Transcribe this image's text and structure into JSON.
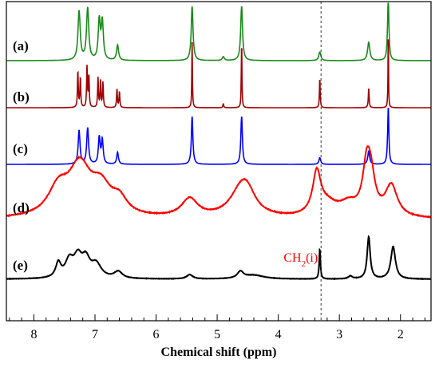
{
  "chart_data": {
    "type": "line",
    "xlabel": "Chemical shift (ppm)",
    "ylabel": "",
    "xlim": [
      8.45,
      1.5
    ],
    "x_ticks": [
      8,
      7,
      6,
      5,
      4,
      3,
      2
    ],
    "x_reversed": true,
    "grid": false,
    "reference_line": {
      "x": 3.3,
      "style": "dashed"
    },
    "annotation": {
      "prefix": "CH",
      "subscript": "2",
      "suffix": "(i)",
      "x": 3.3,
      "panel": "(e)",
      "color": "#ff0000"
    },
    "series": [
      {
        "name": "(a)",
        "color": "#1a8a1a",
        "peaks": [
          [
            7.26,
            0.9,
            0.022
          ],
          [
            7.12,
            0.95,
            0.022
          ],
          [
            6.93,
            0.72,
            0.02
          ],
          [
            6.88,
            0.7,
            0.02
          ],
          [
            6.63,
            0.28,
            0.02
          ],
          [
            5.41,
            1.0,
            0.018
          ],
          [
            4.9,
            0.07,
            0.02
          ],
          [
            4.6,
            1.0,
            0.018
          ],
          [
            3.32,
            0.16,
            0.02
          ],
          [
            2.52,
            0.34,
            0.022
          ],
          [
            2.2,
            1.2,
            0.013
          ]
        ]
      },
      {
        "name": "(b)",
        "color": "#a00000",
        "peaks": [
          [
            7.28,
            0.55,
            0.008
          ],
          [
            7.24,
            0.45,
            0.008
          ],
          [
            7.13,
            0.62,
            0.008
          ],
          [
            7.1,
            0.48,
            0.008
          ],
          [
            6.95,
            0.45,
            0.008
          ],
          [
            6.91,
            0.4,
            0.008
          ],
          [
            6.87,
            0.38,
            0.008
          ],
          [
            6.64,
            0.28,
            0.008
          ],
          [
            6.6,
            0.24,
            0.008
          ],
          [
            5.41,
            1.0,
            0.006
          ],
          [
            4.9,
            0.06,
            0.008
          ],
          [
            4.6,
            1.0,
            0.006
          ],
          [
            3.32,
            0.45,
            0.007
          ],
          [
            2.52,
            0.3,
            0.008
          ],
          [
            2.2,
            1.2,
            0.005
          ]
        ]
      },
      {
        "name": "(c)",
        "color": "#0000ff",
        "peaks": [
          [
            7.26,
            0.7,
            0.018
          ],
          [
            7.12,
            0.75,
            0.018
          ],
          [
            6.93,
            0.55,
            0.017
          ],
          [
            6.88,
            0.5,
            0.017
          ],
          [
            6.63,
            0.25,
            0.017
          ],
          [
            5.41,
            1.0,
            0.015
          ],
          [
            4.6,
            1.0,
            0.015
          ],
          [
            3.32,
            0.14,
            0.017
          ],
          [
            2.52,
            0.28,
            0.018
          ],
          [
            2.2,
            1.2,
            0.012
          ]
        ]
      },
      {
        "name": "(d)",
        "color": "#ff0000",
        "peaks": [
          [
            7.6,
            0.55,
            0.2
          ],
          [
            7.25,
            1.0,
            0.22
          ],
          [
            6.9,
            0.55,
            0.2
          ],
          [
            6.6,
            0.3,
            0.15
          ],
          [
            5.45,
            0.38,
            0.16
          ],
          [
            4.6,
            0.6,
            0.22
          ],
          [
            4.5,
            0.25,
            0.15
          ],
          [
            3.37,
            0.85,
            0.08
          ],
          [
            3.2,
            0.25,
            0.2
          ],
          [
            2.85,
            0.25,
            0.18
          ],
          [
            2.55,
            1.0,
            0.08
          ],
          [
            2.48,
            0.6,
            0.08
          ],
          [
            2.15,
            0.65,
            0.12
          ]
        ]
      },
      {
        "name": "(e)",
        "color": "#000000",
        "peaks": [
          [
            7.6,
            0.3,
            0.05
          ],
          [
            7.42,
            0.35,
            0.08
          ],
          [
            7.28,
            0.4,
            0.08
          ],
          [
            7.15,
            0.36,
            0.08
          ],
          [
            6.98,
            0.28,
            0.1
          ],
          [
            6.62,
            0.14,
            0.08
          ],
          [
            5.45,
            0.09,
            0.06
          ],
          [
            4.62,
            0.14,
            0.06
          ],
          [
            4.4,
            0.08,
            0.2
          ],
          [
            3.32,
            0.62,
            0.012
          ],
          [
            2.82,
            0.06,
            0.04
          ],
          [
            2.52,
            0.88,
            0.03
          ],
          [
            2.12,
            0.68,
            0.045
          ]
        ]
      }
    ]
  }
}
